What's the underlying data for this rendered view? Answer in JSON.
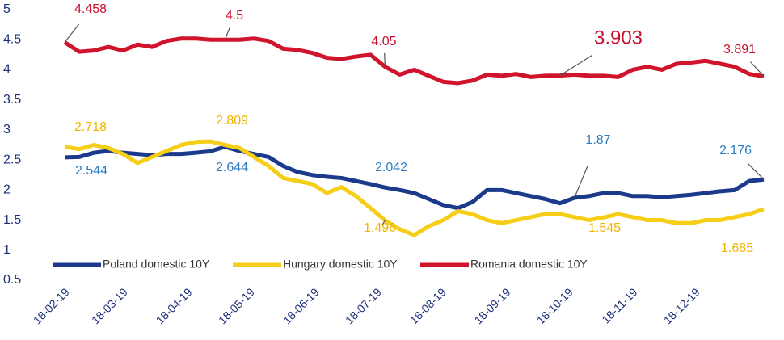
{
  "chart_data": {
    "type": "line",
    "x": [
      "2019-02-18",
      "2019-02-25",
      "2019-03-04",
      "2019-03-11",
      "2019-03-18",
      "2019-03-25",
      "2019-04-01",
      "2019-04-08",
      "2019-04-15",
      "2019-04-22",
      "2019-04-29",
      "2019-05-06",
      "2019-05-13",
      "2019-05-20",
      "2019-05-27",
      "2019-06-03",
      "2019-06-10",
      "2019-06-17",
      "2019-06-24",
      "2019-07-01",
      "2019-07-08",
      "2019-07-15",
      "2019-07-22",
      "2019-07-29",
      "2019-08-05",
      "2019-08-12",
      "2019-08-19",
      "2019-08-26",
      "2019-09-02",
      "2019-09-09",
      "2019-09-16",
      "2019-09-23",
      "2019-09-30",
      "2019-10-07",
      "2019-10-14",
      "2019-10-21",
      "2019-10-28",
      "2019-11-04",
      "2019-11-11",
      "2019-11-18",
      "2019-11-25",
      "2019-12-02",
      "2019-12-09",
      "2019-12-16",
      "2019-12-23",
      "2019-12-30",
      "2020-01-06",
      "2020-01-13",
      "2020-01-20"
    ],
    "xlim": [
      "2019-02-18",
      "2020-01-20"
    ],
    "xticks": [
      {
        "value": "2019-02-18",
        "label": "18-02-19"
      },
      {
        "value": "2019-03-18",
        "label": "18-03-19"
      },
      {
        "value": "2019-04-18",
        "label": "18-04-19"
      },
      {
        "value": "2019-05-18",
        "label": "18-05-19"
      },
      {
        "value": "2019-06-18",
        "label": "18-06-19"
      },
      {
        "value": "2019-07-18",
        "label": "18-07-19"
      },
      {
        "value": "2019-08-18",
        "label": "18-08-19"
      },
      {
        "value": "2019-09-18",
        "label": "18-09-19"
      },
      {
        "value": "2019-10-18",
        "label": "18-10-19"
      },
      {
        "value": "2019-11-18",
        "label": "18-11-19"
      },
      {
        "value": "2019-12-18",
        "label": "18-12-19"
      }
    ],
    "ylim": [
      0.5,
      5
    ],
    "yticks": [
      0.5,
      1,
      1.5,
      2,
      2.5,
      3,
      3.5,
      4,
      4.5,
      5
    ],
    "grid": false,
    "legend": "bottom",
    "series": [
      {
        "name": "Poland domestic 10Y",
        "color": "#1b3a8c",
        "label_color": "#2e7dc0",
        "values": [
          2.544,
          2.55,
          2.62,
          2.65,
          2.62,
          2.6,
          2.58,
          2.6,
          2.6,
          2.62,
          2.644,
          2.72,
          2.65,
          2.6,
          2.55,
          2.4,
          2.3,
          2.25,
          2.22,
          2.2,
          2.15,
          2.1,
          2.042,
          2.0,
          1.95,
          1.85,
          1.75,
          1.7,
          1.8,
          2.0,
          2.0,
          1.95,
          1.9,
          1.85,
          1.78,
          1.87,
          1.9,
          1.95,
          1.95,
          1.9,
          1.9,
          1.88,
          1.9,
          1.92,
          1.95,
          1.98,
          2.0,
          2.15,
          2.176
        ],
        "annotations": [
          {
            "x": "2019-02-18",
            "value": 2.544
          },
          {
            "x": "2019-04-29",
            "value": 2.644
          },
          {
            "x": "2019-07-22",
            "value": 2.042
          },
          {
            "x": "2019-10-21",
            "value": 1.87
          },
          {
            "x": "2020-01-20",
            "value": 2.176
          }
        ]
      },
      {
        "name": "Hungary domestic 10Y",
        "color": "#f6cd17",
        "label_color": "#f0b400",
        "values": [
          2.718,
          2.68,
          2.75,
          2.7,
          2.6,
          2.45,
          2.55,
          2.65,
          2.75,
          2.8,
          2.809,
          2.75,
          2.7,
          2.55,
          2.4,
          2.2,
          2.15,
          2.1,
          1.95,
          2.05,
          1.9,
          1.7,
          1.496,
          1.35,
          1.25,
          1.4,
          1.5,
          1.65,
          1.6,
          1.5,
          1.45,
          1.5,
          1.55,
          1.6,
          1.6,
          1.55,
          1.5,
          1.545,
          1.6,
          1.55,
          1.5,
          1.5,
          1.45,
          1.45,
          1.5,
          1.5,
          1.55,
          1.6,
          1.685
        ],
        "annotations": [
          {
            "x": "2019-02-18",
            "value": 2.718
          },
          {
            "x": "2019-04-29",
            "value": 2.809
          },
          {
            "x": "2019-07-22",
            "value": 1.496
          },
          {
            "x": "2019-11-04",
            "value": 1.545
          },
          {
            "x": "2020-01-20",
            "value": 1.685
          }
        ]
      },
      {
        "name": "Romania domestic 10Y",
        "color": "#d0142c",
        "label_color": "#c8102e",
        "values": [
          4.458,
          4.3,
          4.32,
          4.38,
          4.32,
          4.42,
          4.38,
          4.48,
          4.52,
          4.52,
          4.5,
          4.5,
          4.5,
          4.52,
          4.48,
          4.35,
          4.33,
          4.28,
          4.2,
          4.18,
          4.22,
          4.25,
          4.05,
          3.92,
          4.0,
          3.9,
          3.8,
          3.78,
          3.82,
          3.92,
          3.9,
          3.93,
          3.88,
          3.9,
          3.903,
          3.92,
          3.9,
          3.9,
          3.88,
          4.0,
          4.05,
          4.0,
          4.1,
          4.12,
          4.15,
          4.1,
          4.05,
          3.93,
          3.891
        ],
        "annotations": [
          {
            "x": "2019-02-18",
            "value": 4.458
          },
          {
            "x": "2019-05-06",
            "value": 4.5
          },
          {
            "x": "2019-07-22",
            "value": 4.05
          },
          {
            "x": "2019-10-14",
            "value": 3.903
          },
          {
            "x": "2020-01-20",
            "value": 3.891
          }
        ]
      }
    ]
  }
}
